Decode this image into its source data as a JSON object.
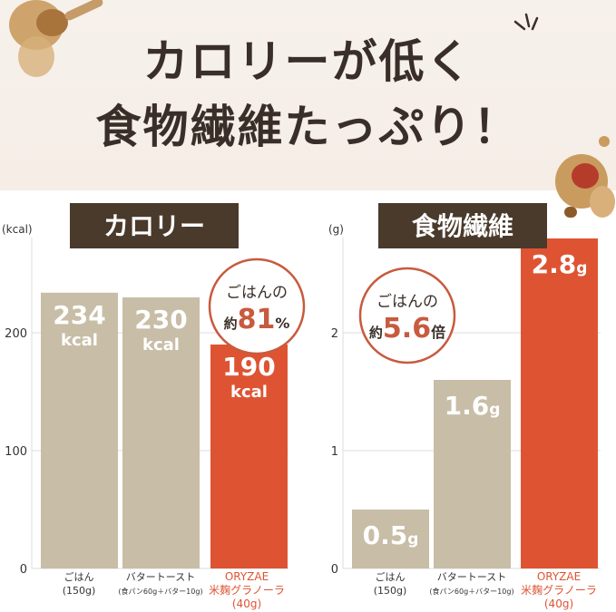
{
  "headline": {
    "line1": "カロリーが低く",
    "line2": "食物繊維たっぷり！"
  },
  "chart_data": [
    {
      "type": "bar",
      "title": "カロリー",
      "ylabel": "(kcal)",
      "ylim": [
        0,
        290
      ],
      "yticks": [
        0,
        100,
        200
      ],
      "grid": true,
      "categories": [
        {
          "line1": "ごはん",
          "line2": "(150g)",
          "highlight": false
        },
        {
          "line1": "バタートースト",
          "line2": "(食パン60g＋バター10g)",
          "highlight": false
        },
        {
          "line1": "ORYZAE",
          "line2": "米麹グラノーラ",
          "line3": "(40g)",
          "highlight": true
        }
      ],
      "values": [
        234,
        230,
        190
      ],
      "value_labels": [
        {
          "num": "234",
          "unit": "kcal"
        },
        {
          "num": "230",
          "unit": "kcal"
        },
        {
          "num": "190",
          "unit": "kcal"
        }
      ],
      "callout": {
        "line1": "ごはんの",
        "prefix": "約",
        "value": "81",
        "suffix": "%"
      }
    },
    {
      "type": "bar",
      "title": "食物繊維",
      "ylabel": "(g)",
      "ylim": [
        0,
        2.9
      ],
      "yticks": [
        0,
        1,
        2
      ],
      "grid": true,
      "categories": [
        {
          "line1": "ごはん",
          "line2": "(150g)",
          "highlight": false
        },
        {
          "line1": "バタートースト",
          "line2": "(食パン60g＋バター10g)",
          "highlight": false
        },
        {
          "line1": "ORYZAE",
          "line2": "米麹グラノーラ",
          "line3": "(40g)",
          "highlight": true
        }
      ],
      "values": [
        0.5,
        1.6,
        2.8
      ],
      "value_labels": [
        {
          "num": "0.5",
          "unit": "g"
        },
        {
          "num": "1.6",
          "unit": "g"
        },
        {
          "num": "2.8",
          "unit": "g"
        }
      ],
      "callout": {
        "line1": "ごはんの",
        "prefix": "約",
        "value": "5.6",
        "suffix": "倍"
      }
    }
  ],
  "colors": {
    "bar": "#c8bda6",
    "highlight": "#de5433",
    "title_box": "#4a3a2c",
    "headline": "#3a2f28",
    "callout": "#c85a3e",
    "grid": "#dcdcdc"
  }
}
